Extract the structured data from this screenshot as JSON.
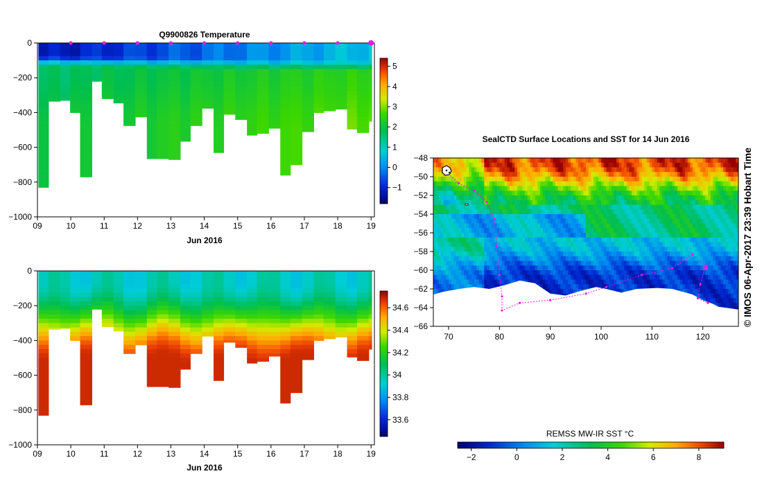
{
  "chart_data": [
    {
      "type": "heatmap",
      "title": "Q9900826  Temperature",
      "xlabel": "Jun 2016",
      "ylabel": "",
      "xlim": [
        9,
        19.1
      ],
      "ylim": [
        -1000,
        0
      ],
      "x_ticks": [
        "09",
        "10",
        "11",
        "12",
        "13",
        "14",
        "15",
        "16",
        "17",
        "18",
        "19"
      ],
      "y_ticks": [
        "0",
        "−200",
        "−400",
        "−600",
        "−800",
        "−1000"
      ],
      "colorbar": {
        "min": -1.8,
        "max": 5.4,
        "ticks": [
          "5",
          "4",
          "3",
          "2",
          "1",
          "0",
          "−1"
        ]
      },
      "profile_times": [
        9.05,
        9.35,
        9.7,
        10.0,
        10.3,
        10.65,
        10.95,
        11.3,
        11.6,
        11.95,
        12.3,
        12.6,
        12.95,
        13.3,
        13.6,
        13.95,
        14.3,
        14.6,
        14.95,
        15.3,
        15.6,
        15.95,
        16.3,
        16.6,
        16.95,
        17.3,
        17.6,
        17.95,
        18.3,
        18.6,
        18.95
      ],
      "profile_max_depth": [
        830,
        335,
        330,
        400,
        770,
        220,
        320,
        345,
        475,
        425,
        665,
        665,
        670,
        565,
        475,
        375,
        630,
        410,
        440,
        530,
        520,
        490,
        760,
        700,
        510,
        400,
        390,
        380,
        495,
        515,
        450
      ],
      "surface_marker_days": [
        10,
        11,
        12,
        13,
        14,
        15,
        16,
        17,
        18,
        19
      ]
    },
    {
      "type": "heatmap",
      "title": "",
      "xlabel": "Jun 2016",
      "ylabel": "",
      "xlim": [
        9,
        19.1
      ],
      "ylim": [
        -1000,
        0
      ],
      "x_ticks": [
        "09",
        "10",
        "11",
        "12",
        "13",
        "14",
        "15",
        "16",
        "17",
        "18",
        "19"
      ],
      "y_ticks": [
        "0",
        "−200",
        "−400",
        "−600",
        "−800",
        "−1000"
      ],
      "colorbar": {
        "min": 33.45,
        "max": 34.75,
        "ticks": [
          "34.6",
          "34.4",
          "34.2",
          "34",
          "33.8",
          "33.6"
        ]
      },
      "profile_times": [
        9.05,
        9.35,
        9.7,
        10.0,
        10.3,
        10.65,
        10.95,
        11.3,
        11.6,
        11.95,
        12.3,
        12.6,
        12.95,
        13.3,
        13.6,
        13.95,
        14.3,
        14.6,
        14.95,
        15.3,
        15.6,
        15.95,
        16.3,
        16.6,
        16.95,
        17.3,
        17.6,
        17.95,
        18.3,
        18.6,
        18.95
      ],
      "profile_max_depth": [
        830,
        335,
        330,
        400,
        770,
        220,
        320,
        345,
        475,
        425,
        665,
        665,
        670,
        565,
        475,
        375,
        630,
        410,
        440,
        530,
        520,
        490,
        760,
        700,
        510,
        400,
        390,
        380,
        495,
        515,
        450
      ]
    },
    {
      "type": "heatmap",
      "title": "SealCTD Surface Locations and SST for 14 Jun 2016",
      "xlabel": "",
      "ylabel": "",
      "xlim": [
        67,
        127
      ],
      "ylim": [
        -66,
        -48
      ],
      "x_ticks": [
        "70",
        "80",
        "90",
        "100",
        "110",
        "120"
      ],
      "y_ticks": [
        "−48",
        "−50",
        "−52",
        "−54",
        "−56",
        "−58",
        "−60",
        "−62",
        "−64",
        "−66"
      ],
      "colorbar": {
        "label": "REMSS MW-IR SST °C",
        "min": -2.6,
        "max": 9.1,
        "ticks": [
          "−2",
          "0",
          "2",
          "4",
          "6",
          "8"
        ]
      },
      "track_points": [
        [
          69.5,
          -49.5
        ],
        [
          72,
          -50.7
        ],
        [
          75,
          -51.5
        ],
        [
          77.5,
          -52.7
        ],
        [
          79,
          -54.5
        ],
        [
          79.5,
          -57.5
        ],
        [
          80,
          -60.5
        ],
        [
          80.5,
          -62.8
        ],
        [
          80.5,
          -64.3
        ],
        [
          84,
          -63.5
        ],
        [
          90,
          -63.2
        ],
        [
          97,
          -62.5
        ],
        [
          101,
          -61.8
        ],
        [
          108,
          -60.5
        ],
        [
          114,
          -59.8
        ],
        [
          118,
          -58.3
        ],
        [
          120.5,
          -59.6
        ],
        [
          119.5,
          -61.5
        ],
        [
          119,
          -63
        ],
        [
          121,
          -63.5
        ]
      ],
      "current_location": [
        120.5,
        -59.7
      ]
    }
  ],
  "credit": "©  IMOS 06-Apr-2017 23:39 Hobart Time"
}
